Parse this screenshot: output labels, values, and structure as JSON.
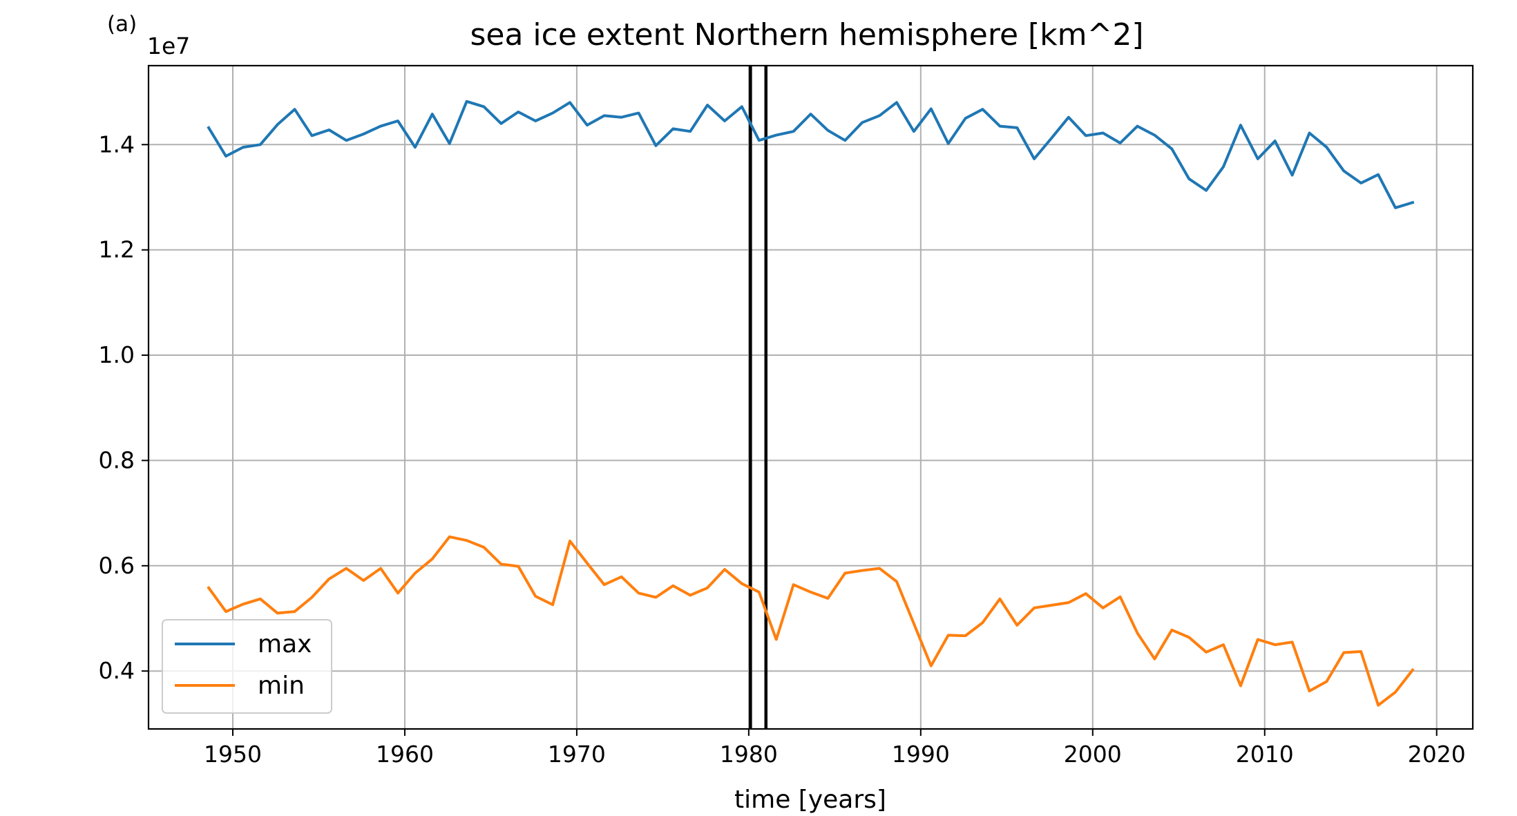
{
  "chart_data": {
    "type": "line",
    "panel_label": "(a)",
    "title": "sea ice extent Northern hemisphere [km^2]",
    "xlabel": "time [years]",
    "ylabel": "",
    "y_offset_label": "1e7",
    "xlim": [
      1945.1,
      2022.1
    ],
    "ylim": [
      2.9,
      15.5
    ],
    "x_ticks": [
      1950,
      1960,
      1970,
      1980,
      1990,
      2000,
      2010,
      2020
    ],
    "x_tick_labels": [
      "1950",
      "1960",
      "1970",
      "1980",
      "1990",
      "2000",
      "2010",
      "2020"
    ],
    "y_ticks": [
      4,
      6,
      8,
      10,
      12,
      14
    ],
    "y_tick_labels": [
      "0.4",
      "0.6",
      "0.8",
      "1.0",
      "1.2",
      "1.4"
    ],
    "grid": true,
    "legend_position": "lower-left",
    "vertical_lines": [
      1980.1,
      1981.0
    ],
    "vertical_line_color": "#000000",
    "x": [
      1948.6,
      1949.6,
      1950.6,
      1951.6,
      1952.6,
      1953.6,
      1954.6,
      1955.6,
      1956.6,
      1957.6,
      1958.6,
      1959.6,
      1960.6,
      1961.6,
      1962.6,
      1963.6,
      1964.6,
      1965.6,
      1966.6,
      1967.6,
      1968.6,
      1969.6,
      1970.6,
      1971.6,
      1972.6,
      1973.6,
      1974.6,
      1975.6,
      1976.6,
      1977.6,
      1978.6,
      1979.6,
      1980.6,
      1981.6,
      1982.6,
      1983.6,
      1984.6,
      1985.6,
      1986.6,
      1987.6,
      1988.6,
      1989.6,
      1990.6,
      1991.6,
      1992.6,
      1993.6,
      1994.6,
      1995.6,
      1996.6,
      1997.6,
      1998.6,
      1999.6,
      2000.6,
      2001.6,
      2002.6,
      2003.6,
      2004.6,
      2005.6,
      2006.6,
      2007.6,
      2008.6,
      2009.6,
      2010.6,
      2011.6,
      2012.6,
      2013.6,
      2014.6,
      2015.6,
      2016.6,
      2017.6,
      2018.6
    ],
    "series": [
      {
        "name": "max",
        "color": "#1f77b4",
        "values": [
          14.32,
          13.78,
          13.95,
          14.0,
          14.38,
          14.67,
          14.17,
          14.28,
          14.08,
          14.2,
          14.35,
          14.45,
          13.95,
          14.58,
          14.02,
          14.82,
          14.72,
          14.4,
          14.62,
          14.45,
          14.6,
          14.8,
          14.37,
          14.55,
          14.52,
          14.6,
          13.98,
          14.3,
          14.25,
          14.75,
          14.45,
          14.72,
          14.08,
          14.18,
          14.25,
          14.58,
          14.27,
          14.08,
          14.42,
          14.55,
          14.8,
          14.25,
          14.68,
          14.02,
          14.5,
          14.67,
          14.35,
          14.32,
          13.73,
          14.12,
          14.52,
          14.17,
          14.22,
          14.03,
          14.35,
          14.18,
          13.92,
          13.35,
          13.13,
          13.58,
          14.37,
          13.73,
          14.07,
          13.42,
          14.22,
          13.95,
          13.5,
          13.27,
          13.43,
          12.8,
          12.9
        ]
      },
      {
        "name": "min",
        "color": "#ff7f0e",
        "values": [
          5.58,
          5.13,
          5.27,
          5.37,
          5.1,
          5.13,
          5.4,
          5.75,
          5.95,
          5.72,
          5.95,
          5.48,
          5.86,
          6.13,
          6.55,
          6.48,
          6.35,
          6.03,
          5.99,
          5.42,
          5.26,
          6.47,
          6.05,
          5.64,
          5.79,
          5.48,
          5.4,
          5.62,
          5.44,
          5.58,
          5.93,
          5.66,
          5.5,
          4.6,
          5.64,
          5.5,
          5.38,
          5.86,
          5.91,
          5.95,
          5.7,
          4.9,
          4.1,
          4.68,
          4.67,
          4.92,
          5.37,
          4.87,
          5.2,
          5.25,
          5.3,
          5.47,
          5.2,
          5.41,
          4.72,
          4.23,
          4.78,
          4.64,
          4.36,
          4.5,
          3.72,
          4.6,
          4.5,
          4.55,
          3.62,
          3.8,
          4.35,
          4.37,
          3.35,
          3.6,
          4.02
        ]
      }
    ]
  }
}
